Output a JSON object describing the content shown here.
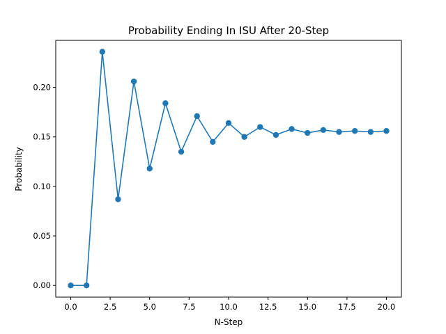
{
  "chart_data": {
    "type": "line",
    "title": "Probability Ending In  ISU After 20-Step",
    "xlabel": "N-Step",
    "ylabel": "Probability",
    "xlim": [
      -0.95,
      20.95
    ],
    "ylim": [
      -0.0118,
      0.2475
    ],
    "x_ticks": [
      0.0,
      2.5,
      5.0,
      7.5,
      10.0,
      12.5,
      15.0,
      17.5,
      20.0
    ],
    "x_tick_labels": [
      "0.0",
      "2.5",
      "5.0",
      "7.5",
      "10.0",
      "12.5",
      "15.0",
      "17.5",
      "20.0"
    ],
    "y_ticks": [
      0.0,
      0.05,
      0.1,
      0.15,
      0.2
    ],
    "y_tick_labels": [
      "0.00",
      "0.05",
      "0.10",
      "0.15",
      "0.20"
    ],
    "grid": false,
    "series": [
      {
        "color": "#1f77b4",
        "marker": "circle",
        "x": [
          0,
          1,
          2,
          3,
          4,
          5,
          6,
          7,
          8,
          9,
          10,
          11,
          12,
          13,
          14,
          15,
          16,
          17,
          18,
          19,
          20
        ],
        "y": [
          0.0,
          0.0,
          0.236,
          0.087,
          0.206,
          0.118,
          0.184,
          0.135,
          0.171,
          0.145,
          0.164,
          0.15,
          0.16,
          0.152,
          0.158,
          0.154,
          0.157,
          0.155,
          0.156,
          0.155,
          0.156
        ]
      }
    ]
  }
}
